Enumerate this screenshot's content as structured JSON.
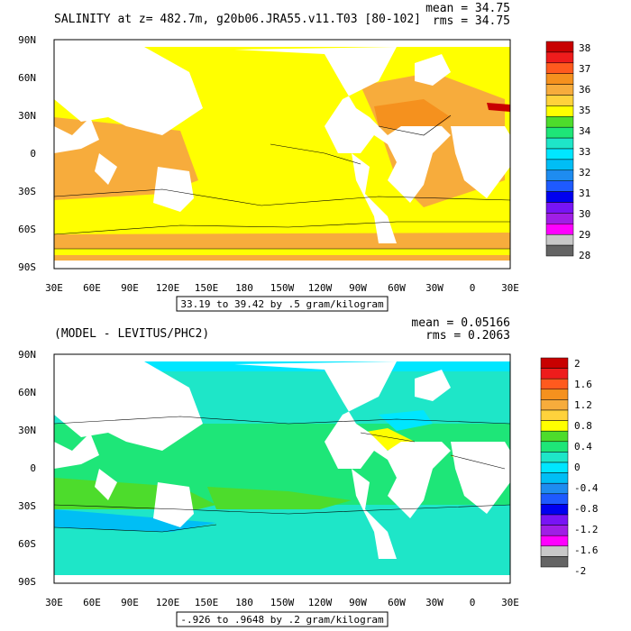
{
  "panels": [
    {
      "title": "SALINITY at z= 482.7m, g20b06.JRA55.v11.T03 [80-102]",
      "stats": {
        "mean": "mean = 34.75",
        "rms": "rms = 34.75"
      },
      "caption": "33.19 to 39.42 by .5 gram/kilogram",
      "colorbar_labels": [
        "38",
        "37",
        "36",
        "35",
        "34",
        "33",
        "32",
        "31",
        "30",
        "29",
        "28"
      ],
      "colorbar_colors": [
        "#c80000",
        "#ee1c1c",
        "#ff5a1e",
        "#f5911e",
        "#f7ac3c",
        "#ffd23c",
        "#ffff00",
        "#4ddc2c",
        "#1ee678",
        "#1ee6c8",
        "#00e6ff",
        "#00bef5",
        "#1e8cf0",
        "#1e5aff",
        "#0000f0",
        "#7814f5",
        "#a01ee6",
        "#ff00ff",
        "#c8c8c8",
        "#646464"
      ]
    },
    {
      "title": "(MODEL - LEVITUS/PHC2)",
      "stats": {
        "mean": "mean = 0.05166",
        "rms": "rms = 0.2063"
      },
      "caption": "-.926 to .9648 by .2 gram/kilogram",
      "colorbar_labels": [
        "2",
        "1.6",
        "1.2",
        "0.8",
        "0.4",
        "0",
        "-0.4",
        "-0.8",
        "-1.2",
        "-1.6",
        "-2"
      ],
      "colorbar_colors": [
        "#c80000",
        "#ee1c1c",
        "#ff5a1e",
        "#f5911e",
        "#f7ac3c",
        "#ffd23c",
        "#ffff00",
        "#4ddc2c",
        "#1ee678",
        "#1ee6c8",
        "#00e6ff",
        "#00bef5",
        "#1e8cf0",
        "#1e5aff",
        "#0000f0",
        "#7814f5",
        "#a01ee6",
        "#ff00ff",
        "#c8c8c8",
        "#646464"
      ]
    }
  ],
  "axes": {
    "lat_labels": [
      "90N",
      "60N",
      "30N",
      "0",
      "30S",
      "60S",
      "90S"
    ],
    "lon_labels": [
      "30E",
      "60E",
      "90E",
      "120E",
      "150E",
      "180",
      "150W",
      "120W",
      "90W",
      "60W",
      "30W",
      "0",
      "30E"
    ]
  },
  "colors": {
    "land": "#ffffff",
    "salinity_base": "#ffff00",
    "salinity_high": "#f5911e",
    "salinity_mid": "#f7ac3c",
    "diff_base": "#1ee6c8",
    "diff_green": "#1ee678",
    "diff_lightgreen": "#4ddc2c",
    "diff_cyan": "#00e6ff",
    "diff_blue": "#00bef5",
    "diff_yellow": "#ffff00"
  }
}
